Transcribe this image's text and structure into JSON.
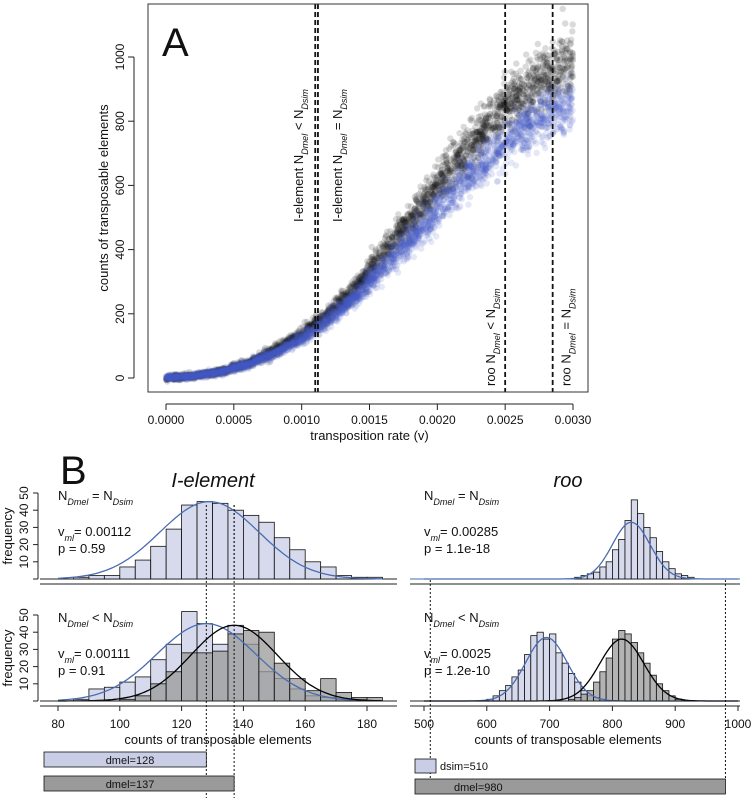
{
  "chart_data": [
    {
      "type": "scatter",
      "panel": "A",
      "xlabel": "transposition rate (v)",
      "ylabel": "counts of transposable elements",
      "xlim": [
        0,
        0.003
      ],
      "ylim": [
        0,
        1100
      ],
      "xticks": [
        "0.0000",
        "0.0005",
        "0.0010",
        "0.0015",
        "0.0020",
        "0.0025",
        "0.0030"
      ],
      "yticks": [
        "0",
        "200",
        "400",
        "600",
        "800",
        "1000"
      ],
      "grid": false,
      "colors": {
        "black_series": "#1a1a1a",
        "blue_series": "#4a5fc8"
      },
      "series": [
        {
          "color": "#1a1a1a",
          "x": [
            0,
            0.0002,
            0.0004,
            0.0006,
            0.0008,
            0.001,
            0.0012,
            0.0014,
            0.0016,
            0.0018,
            0.002,
            0.0022,
            0.0024,
            0.0026,
            0.0028,
            0.003
          ],
          "y": [
            0,
            6,
            20,
            45,
            85,
            135,
            200,
            285,
            385,
            490,
            600,
            705,
            800,
            880,
            940,
            990
          ]
        },
        {
          "color": "#4a5fc8",
          "x": [
            0,
            0.0002,
            0.0004,
            0.0006,
            0.0008,
            0.001,
            0.0012,
            0.0014,
            0.0016,
            0.0018,
            0.002,
            0.0022,
            0.0024,
            0.0026,
            0.0028,
            0.003
          ],
          "y": [
            0,
            6,
            19,
            42,
            78,
            122,
            180,
            255,
            340,
            430,
            525,
            615,
            695,
            765,
            820,
            860
          ]
        }
      ],
      "vlines": [
        {
          "x": 0.0011,
          "label_prefix": "I-element",
          "sub": "Dmel",
          "rel": "<",
          "sub2": "Dsim"
        },
        {
          "x": 0.00112,
          "label_prefix": "I-element",
          "sub": "Dmel",
          "rel": "=",
          "sub2": "Dsim"
        },
        {
          "x": 0.0025,
          "label_prefix": "roo",
          "sub": "Dmel",
          "rel": "<",
          "sub2": "Dsim"
        },
        {
          "x": 0.00285,
          "label_prefix": "roo",
          "sub": "Dmel",
          "rel": "=",
          "sub2": "Dsim"
        }
      ]
    },
    {
      "type": "bar",
      "panel": "B",
      "title": "I-element",
      "xlabel": "counts of transposable elements",
      "ylabel": "frequency",
      "xlim": [
        80,
        185
      ],
      "xticks": [
        "80",
        "100",
        "120",
        "140",
        "160",
        "180"
      ],
      "ylim": [
        0,
        50
      ],
      "yticks": [
        "0",
        "10",
        "20",
        "30",
        "40",
        "50"
      ],
      "bin_width": 5,
      "colors": {
        "light": "#c9cde6",
        "dark": "#9a9a9a",
        "blue_curve": "#4a6db0",
        "black_curve": "#000000"
      },
      "top": {
        "label_n": "N",
        "sub1": "Dmel",
        "rel": "=",
        "sub2": "Dsim",
        "v_label": "v",
        "v_sub": "ml",
        "v_value": "= 0.00112",
        "p_value": "p = 0.59",
        "bins_start": [
          85,
          90,
          95,
          100,
          105,
          110,
          115,
          120,
          125,
          130,
          135,
          140,
          145,
          150,
          155,
          160,
          165,
          170,
          175,
          180
        ],
        "counts": [
          1,
          2,
          2,
          7,
          11,
          19,
          29,
          43,
          45,
          44,
          40,
          37,
          33,
          24,
          17,
          10,
          7,
          2,
          1,
          1
        ],
        "curve": {
          "mean": 129,
          "sd": 16,
          "peak": 45
        },
        "mean_line": 137
      },
      "bottom": {
        "label_n": "N",
        "sub1": "Dmel",
        "rel": "<",
        "sub2": "Dsim",
        "v_label": "v",
        "v_sub": "ml",
        "v_value": "= 0.00111",
        "p_value": "p = 0.91",
        "light_series": {
          "bins_start": [
            85,
            90,
            95,
            100,
            105,
            110,
            115,
            120,
            125,
            130,
            135,
            140,
            145,
            150,
            155,
            160,
            165,
            170,
            175
          ],
          "counts": [
            1,
            7,
            8,
            11,
            14,
            24,
            33,
            52,
            45,
            33,
            44,
            33,
            17,
            13,
            7,
            3,
            2,
            1,
            1
          ],
          "curve": {
            "mean": 128,
            "sd": 16,
            "peak": 45
          }
        },
        "dark_series": {
          "bins_start": [
            100,
            105,
            110,
            115,
            120,
            125,
            130,
            135,
            140,
            145,
            150,
            155,
            160,
            165,
            170,
            175,
            180
          ],
          "counts": [
            1,
            3,
            10,
            17,
            28,
            28,
            29,
            39,
            41,
            40,
            22,
            13,
            6,
            13,
            5,
            2,
            2
          ],
          "curve": {
            "mean": 137,
            "sd": 14,
            "peak": 44
          }
        },
        "mean_lines": [
          128,
          137
        ]
      },
      "boxes": [
        {
          "label": "dmel=128",
          "value": 128,
          "color": "#c9cde6"
        },
        {
          "label": "dmel=137",
          "value": 137,
          "color": "#9a9a9a"
        }
      ]
    },
    {
      "type": "bar",
      "panel": "B",
      "title": "roo",
      "xlabel": "counts of transposable elements",
      "xlim": [
        500,
        1000
      ],
      "xticks": [
        "500",
        "600",
        "700",
        "800",
        "900",
        "1000"
      ],
      "ylim": [
        0,
        50
      ],
      "bin_width": 10,
      "top": {
        "label_n": "N",
        "sub1": "Dmel",
        "rel": "=",
        "sub2": "Dsim",
        "v_label": "v",
        "v_sub": "ml",
        "v_value": "= 0.00285",
        "p_value": "p = 1.1e-18",
        "bins_start": [
          740,
          750,
          760,
          770,
          780,
          790,
          800,
          810,
          820,
          830,
          840,
          850,
          860,
          870,
          880,
          890,
          900,
          910,
          920
        ],
        "counts": [
          1,
          2,
          3,
          4,
          7,
          10,
          17,
          23,
          34,
          46,
          38,
          30,
          24,
          16,
          10,
          6,
          3,
          2,
          1
        ],
        "curve": {
          "mean": 830,
          "sd": 30,
          "peak": 33
        }
      },
      "bottom": {
        "label_n": "N",
        "sub1": "Dmel",
        "rel": "<",
        "sub2": "Dsim",
        "v_label": "v",
        "v_sub": "ml",
        "v_value": "= 0.0025",
        "p_value": "p = 1.2e-10",
        "light_series": {
          "bins_start": [
            600,
            610,
            620,
            630,
            640,
            650,
            660,
            670,
            680,
            690,
            700,
            710,
            720,
            730,
            740,
            750,
            760,
            770,
            780
          ],
          "counts": [
            1,
            3,
            6,
            9,
            14,
            18,
            27,
            38,
            40,
            36,
            39,
            28,
            22,
            16,
            11,
            6,
            3,
            2,
            1
          ],
          "curve": {
            "mean": 695,
            "sd": 33,
            "peak": 37
          }
        },
        "dark_series": {
          "bins_start": [
            730,
            740,
            750,
            760,
            770,
            780,
            790,
            800,
            810,
            820,
            830,
            840,
            850,
            860,
            870,
            880,
            890,
            900
          ],
          "counts": [
            1,
            2,
            4,
            6,
            11,
            17,
            25,
            36,
            41,
            39,
            34,
            28,
            22,
            15,
            10,
            6,
            3,
            1
          ],
          "curve": {
            "mean": 815,
            "sd": 35,
            "peak": 36
          }
        }
      },
      "boxes": [
        {
          "label": "dsim=510",
          "value": 510,
          "color": "#c9cde6"
        },
        {
          "label": "dmel=980",
          "value": 980,
          "color": "#9a9a9a"
        }
      ]
    }
  ]
}
